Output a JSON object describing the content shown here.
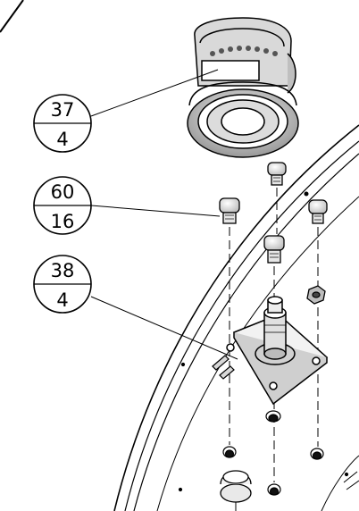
{
  "balloons": [
    {
      "item": "37",
      "qty": "4"
    },
    {
      "item": "60",
      "qty": "16"
    },
    {
      "item": "38",
      "qty": "4"
    }
  ]
}
